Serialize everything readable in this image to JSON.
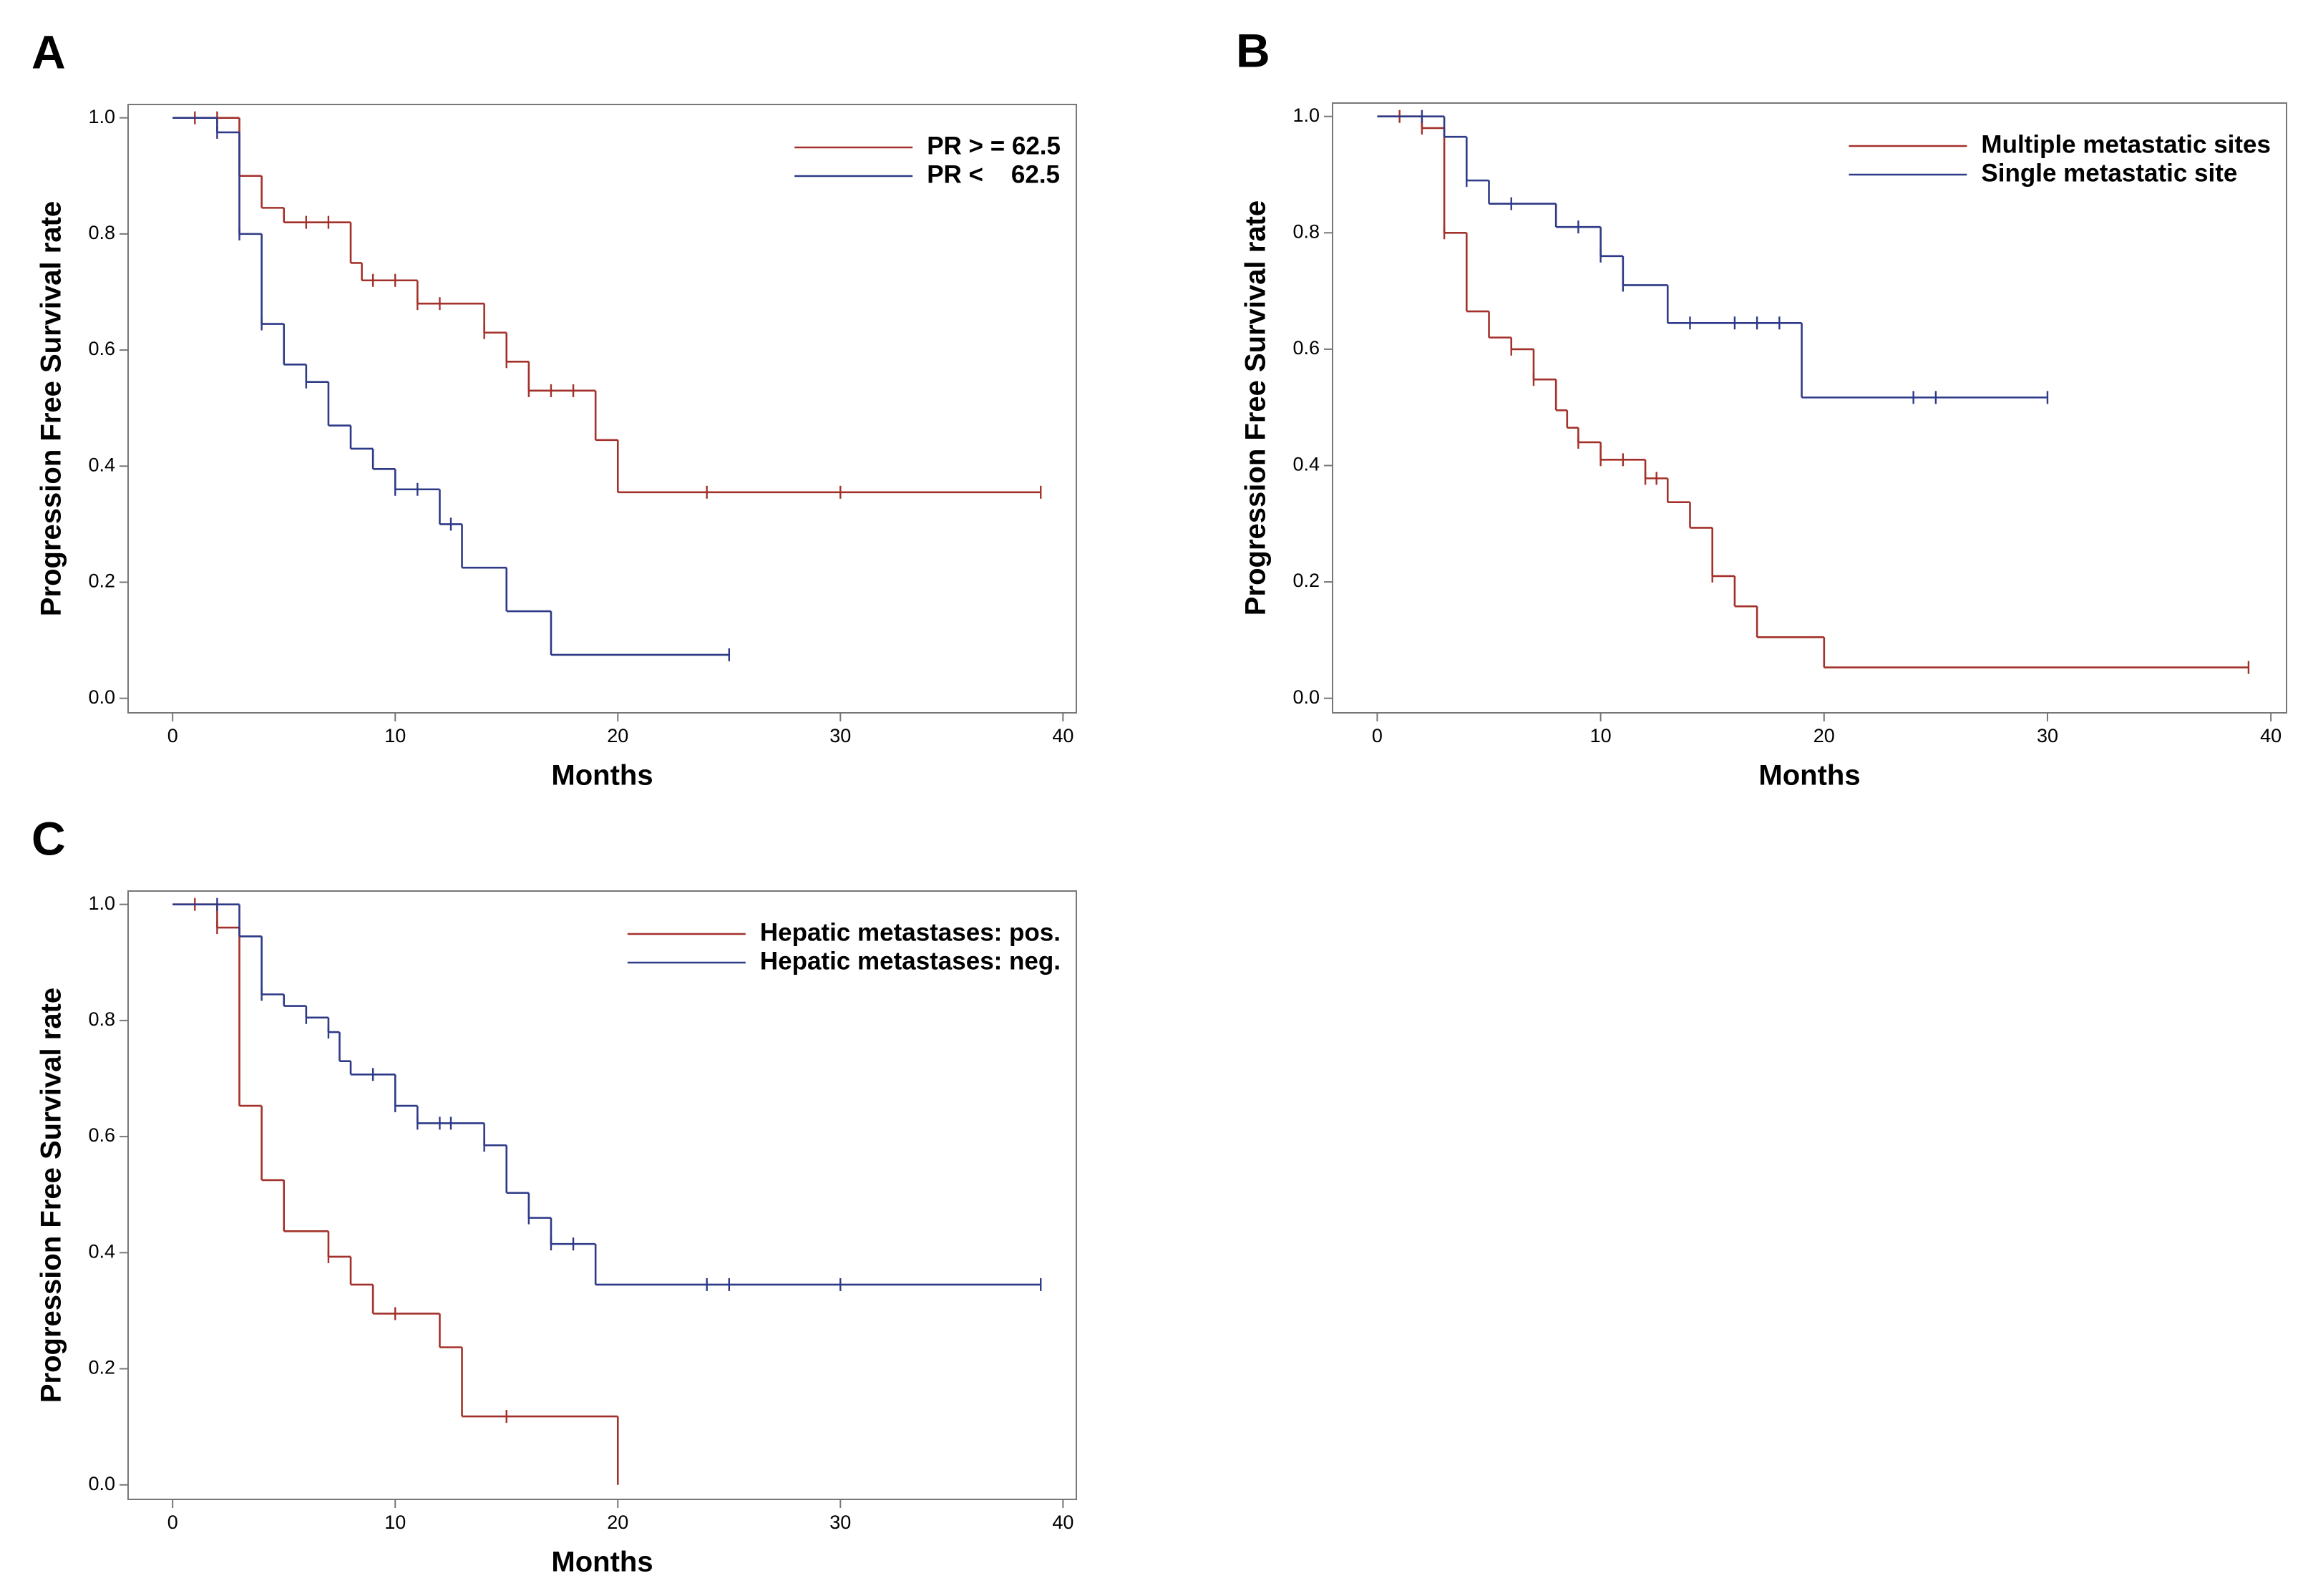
{
  "chart_data": [
    {
      "type": "step",
      "label": "A",
      "xlabel": "Months",
      "ylabel": "Progression Free Survival rate",
      "xlim": [
        -2,
        40.6
      ],
      "ylim": [
        -0.025,
        1.023
      ],
      "xticks": [
        0,
        10,
        20,
        30,
        40
      ],
      "yticks": [
        {
          "value": 0,
          "label": "0.0"
        },
        0.2,
        0.4,
        0.6,
        0.8,
        {
          "value": 1,
          "label": "1.0"
        }
      ],
      "legend": "upper right",
      "series": [
        {
          "name": "PR > = 62.5",
          "color": "#a3312b",
          "x": [
            0,
            3,
            4,
            5,
            8,
            8.5,
            11,
            14,
            15,
            16,
            19,
            20,
            39
          ],
          "values": [
            1.0,
            0.9,
            0.845,
            0.82,
            0.75,
            0.72,
            0.68,
            0.63,
            0.58,
            0.53,
            0.445,
            0.355,
            0.355
          ],
          "censor_times": [
            1,
            2,
            6,
            7,
            9,
            10,
            11,
            12,
            14,
            15,
            16,
            17,
            18,
            24,
            30,
            39
          ],
          "censor_values": [
            1.0,
            1.0,
            0.82,
            0.82,
            0.72,
            0.72,
            0.68,
            0.68,
            0.63,
            0.58,
            0.53,
            0.53,
            0.53,
            0.355,
            0.355,
            0.355
          ]
        },
        {
          "name": "PR <    62.5",
          "color": "#2e3a87",
          "x": [
            0,
            2,
            3,
            4,
            5,
            6,
            7,
            8,
            9,
            10,
            12,
            13,
            15,
            17,
            25
          ],
          "values": [
            1.0,
            0.975,
            0.8,
            0.645,
            0.575,
            0.545,
            0.47,
            0.43,
            0.395,
            0.36,
            0.3,
            0.225,
            0.15,
            0.075,
            0.075
          ],
          "censor_times": [
            2,
            3,
            4,
            6,
            10,
            11,
            12.5,
            25
          ],
          "censor_values": [
            0.975,
            0.8,
            0.645,
            0.545,
            0.36,
            0.36,
            0.3,
            0.075
          ]
        }
      ]
    },
    {
      "type": "step",
      "label": "B",
      "xlabel": "Months",
      "ylabel": "Progression Free Survival rate",
      "xlim": [
        -2,
        40.7
      ],
      "ylim": [
        -0.025,
        1.023
      ],
      "xticks": [
        0,
        10,
        20,
        30,
        40
      ],
      "yticks": [
        {
          "value": 0,
          "label": "0.0"
        },
        0.2,
        0.4,
        0.6,
        0.8,
        {
          "value": 1,
          "label": "1.0"
        }
      ],
      "legend": "upper right",
      "series": [
        {
          "name": "Multiple metastatic sites",
          "color": "#a3312b",
          "x": [
            0,
            2,
            3,
            4,
            5,
            6,
            7,
            8,
            8.5,
            9,
            10,
            12,
            13,
            14,
            15,
            16,
            17,
            20,
            39
          ],
          "values": [
            1.0,
            0.98,
            0.8,
            0.665,
            0.62,
            0.6,
            0.548,
            0.495,
            0.465,
            0.44,
            0.41,
            0.378,
            0.337,
            0.293,
            0.21,
            0.158,
            0.105,
            0.053,
            0.053
          ],
          "censor_times": [
            1,
            2,
            3,
            6,
            7,
            9,
            10,
            11,
            12,
            12.5,
            15,
            39
          ],
          "censor_values": [
            1.0,
            0.98,
            0.8,
            0.6,
            0.548,
            0.44,
            0.41,
            0.41,
            0.378,
            0.378,
            0.21,
            0.053
          ]
        },
        {
          "name": "Single metastatic site",
          "color": "#2e3a87",
          "x": [
            0,
            3,
            4,
            5,
            8,
            10,
            11,
            13,
            19,
            30
          ],
          "values": [
            1.0,
            0.965,
            0.89,
            0.85,
            0.81,
            0.76,
            0.71,
            0.645,
            0.517,
            0.517
          ],
          "censor_times": [
            2,
            4,
            6,
            9,
            10,
            11,
            14,
            16,
            17,
            18,
            24,
            25,
            30
          ],
          "censor_values": [
            1.0,
            0.89,
            0.85,
            0.81,
            0.76,
            0.71,
            0.645,
            0.645,
            0.645,
            0.645,
            0.517,
            0.517,
            0.517
          ]
        }
      ]
    },
    {
      "type": "step",
      "label": "C",
      "xlabel": "Months",
      "ylabel": "Progression Free Survival rate",
      "xlim": [
        -2,
        40.6
      ],
      "ylim": [
        -0.025,
        1.023
      ],
      "xticks": [
        0,
        10,
        20,
        30,
        40
      ],
      "yticks": [
        {
          "value": 0,
          "label": "0.0"
        },
        0.2,
        0.4,
        0.6,
        0.8,
        {
          "value": 1,
          "label": "1.0"
        }
      ],
      "legend": "upper right",
      "series": [
        {
          "name": "Hepatic metastases: pos.",
          "color": "#a3312b",
          "x": [
            0,
            2,
            3,
            4,
            5,
            7,
            8,
            9,
            12,
            13,
            20
          ],
          "values": [
            1.0,
            0.96,
            0.653,
            0.525,
            0.437,
            0.393,
            0.345,
            0.295,
            0.237,
            0.118,
            0.0
          ],
          "censor_times": [
            1,
            2,
            7,
            10,
            15
          ],
          "censor_values": [
            1.0,
            0.96,
            0.393,
            0.295,
            0.118
          ]
        },
        {
          "name": "Hepatic metastases: neg.",
          "color": "#2e3a87",
          "x": [
            0,
            3,
            4,
            5,
            6,
            7,
            7.5,
            8,
            10,
            11,
            14,
            15,
            16,
            17,
            19,
            39
          ],
          "values": [
            1.0,
            0.945,
            0.845,
            0.825,
            0.805,
            0.78,
            0.73,
            0.707,
            0.653,
            0.623,
            0.585,
            0.503,
            0.46,
            0.415,
            0.345,
            0.345
          ],
          "censor_times": [
            2,
            4,
            6,
            7,
            9,
            10,
            11,
            12,
            12.5,
            14,
            16,
            17,
            18,
            24,
            25,
            30,
            39
          ],
          "censor_values": [
            1.0,
            0.845,
            0.805,
            0.78,
            0.707,
            0.653,
            0.623,
            0.623,
            0.623,
            0.585,
            0.46,
            0.415,
            0.415,
            0.345,
            0.345,
            0.345,
            0.345
          ]
        }
      ]
    }
  ]
}
